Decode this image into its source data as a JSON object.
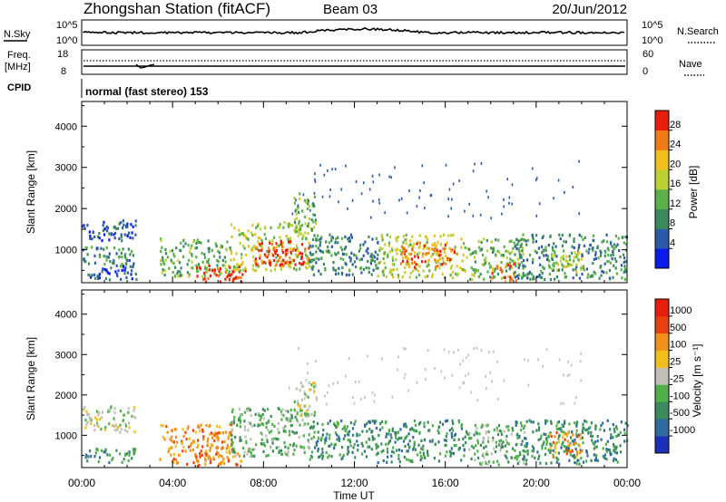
{
  "header": {
    "station": "Zhongshan Station (fitACF)",
    "beam": "Beam 03",
    "date": "20/Jun/2012"
  },
  "strips": {
    "nsky": {
      "label": "N.Sky",
      "top_tick": "10^5",
      "bottom_tick": "10^0",
      "right_top_tick": "10^5",
      "right_bottom_tick": "10^0",
      "right_label": "N.Search"
    },
    "freq": {
      "label_line1": "Freq.",
      "label_line2": "[MHz]",
      "top_tick": "18",
      "bottom_tick": "8",
      "right_top_tick": "60",
      "right_bottom_tick": "0",
      "right_label": "Nave"
    },
    "cpid": {
      "label": "CPID",
      "text": "normal (fast stereo) 153"
    }
  },
  "chart_data": [
    {
      "type": "heatmap",
      "title": "",
      "ylabel": "Slant Range [km]",
      "ylim": [
        200,
        4600
      ],
      "yticks": [
        "1000",
        "2000",
        "3000",
        "4000"
      ],
      "colorbar": {
        "label": "Power [dB]",
        "ticks": [
          "4",
          "8",
          "12",
          "16",
          "20",
          "24",
          "28"
        ],
        "colors": [
          "#0a1ae8",
          "#2a5aa8",
          "#3a8a5c",
          "#5bb04a",
          "#bcd034",
          "#f2be1e",
          "#f07a14",
          "#e81e0c"
        ]
      },
      "regions": [
        {
          "t0": 0.0,
          "t1": 2.4,
          "r0": 1250,
          "r1": 1750,
          "level": 1
        },
        {
          "t0": 0.0,
          "t1": 2.4,
          "r0": 600,
          "r1": 1100,
          "level": 2
        },
        {
          "t0": 0.0,
          "t1": 2.4,
          "r0": 300,
          "r1": 650,
          "level": 1
        },
        {
          "t0": 3.4,
          "t1": 6.6,
          "r0": 350,
          "r1": 1300,
          "level": 3
        },
        {
          "t0": 5.0,
          "t1": 7.2,
          "r0": 250,
          "r1": 650,
          "level": 7
        },
        {
          "t0": 6.5,
          "t1": 10.0,
          "r0": 500,
          "r1": 1700,
          "level": 4
        },
        {
          "t0": 7.6,
          "t1": 10.0,
          "r0": 650,
          "r1": 1250,
          "level": 7
        },
        {
          "t0": 9.3,
          "t1": 10.3,
          "r0": 1500,
          "r1": 2400,
          "level": 3
        },
        {
          "t0": 10.0,
          "t1": 13.0,
          "r0": 400,
          "r1": 1400,
          "level": 2
        },
        {
          "t0": 13.0,
          "t1": 17.0,
          "r0": 350,
          "r1": 1400,
          "level": 4
        },
        {
          "t0": 14.0,
          "t1": 16.5,
          "r0": 600,
          "r1": 1200,
          "level": 6
        },
        {
          "t0": 17.0,
          "t1": 19.5,
          "r0": 300,
          "r1": 1300,
          "level": 3
        },
        {
          "t0": 18.0,
          "t1": 19.2,
          "r0": 250,
          "r1": 700,
          "level": 6
        },
        {
          "t0": 19.0,
          "t1": 24.0,
          "r0": 300,
          "r1": 1400,
          "level": 2
        },
        {
          "t0": 20.5,
          "t1": 22.0,
          "r0": 500,
          "r1": 1000,
          "level": 4
        }
      ]
    },
    {
      "type": "heatmap",
      "title": "",
      "ylabel": "Slant Range [km]",
      "ylim": [
        200,
        4600
      ],
      "yticks": [
        "1000",
        "2000",
        "3000",
        "4000"
      ],
      "xlabel": "Time UT",
      "xticks": [
        "00:00",
        "04:00",
        "08:00",
        "12:00",
        "16:00",
        "20:00",
        "00:00"
      ],
      "colorbar": {
        "label": "Velocity [m s⁻¹]",
        "ticks": [
          "1000",
          "500",
          "100",
          "25",
          "-25",
          "-100",
          "-500",
          "-1000"
        ],
        "colors": [
          "#1c2fb8",
          "#2f6aa0",
          "#3a8a5c",
          "#4fb04a",
          "#c0c0b8",
          "#f2be1e",
          "#f0901a",
          "#e8400e",
          "#e81e0c"
        ]
      },
      "regions": [
        {
          "t0": 0.0,
          "t1": 2.4,
          "r0": 1100,
          "r1": 1750,
          "level": 4
        },
        {
          "t0": 0.0,
          "t1": 2.4,
          "r0": 350,
          "r1": 700,
          "level": 2
        },
        {
          "t0": 3.4,
          "t1": 6.6,
          "r0": 300,
          "r1": 1300,
          "level": 6
        },
        {
          "t0": 5.0,
          "t1": 7.0,
          "r0": 250,
          "r1": 600,
          "level": 6
        },
        {
          "t0": 6.5,
          "t1": 10.0,
          "r0": 500,
          "r1": 1700,
          "level": 3
        },
        {
          "t0": 9.3,
          "t1": 10.3,
          "r0": 1500,
          "r1": 2400,
          "level": 4
        },
        {
          "t0": 10.0,
          "t1": 13.0,
          "r0": 400,
          "r1": 1400,
          "level": 2
        },
        {
          "t0": 13.0,
          "t1": 17.0,
          "r0": 350,
          "r1": 1400,
          "level": 2
        },
        {
          "t0": 17.0,
          "t1": 19.5,
          "r0": 300,
          "r1": 1300,
          "level": 3
        },
        {
          "t0": 19.0,
          "t1": 24.0,
          "r0": 300,
          "r1": 1400,
          "level": 2
        },
        {
          "t0": 20.5,
          "t1": 22.0,
          "r0": 500,
          "r1": 1100,
          "level": 6
        }
      ]
    }
  ]
}
